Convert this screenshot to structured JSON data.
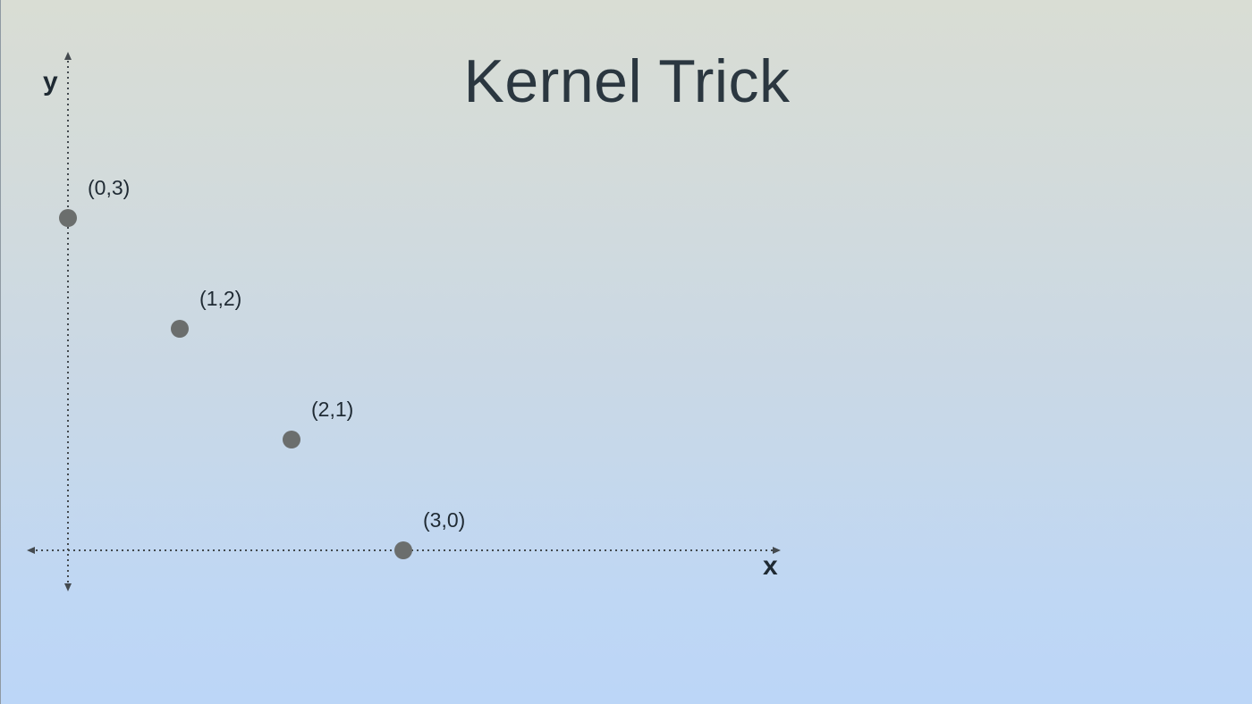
{
  "slide": {
    "title": "Kernel Trick"
  },
  "chart_data": {
    "type": "scatter",
    "title": "Kernel Trick",
    "xlabel": "x",
    "ylabel": "y",
    "xlim": [
      0,
      6.7
    ],
    "ylim": [
      -0.3,
      4.4
    ],
    "grid": false,
    "points": [
      {
        "x": 0,
        "y": 3,
        "label": "(0,3)"
      },
      {
        "x": 1,
        "y": 2,
        "label": "(1,2)"
      },
      {
        "x": 2,
        "y": 1,
        "label": "(2,1)"
      },
      {
        "x": 3,
        "y": 0,
        "label": "(3,0)"
      }
    ],
    "colors": {
      "point": "#6b6e6d",
      "axis": "#444a4f",
      "text": "#1f2a33"
    }
  }
}
